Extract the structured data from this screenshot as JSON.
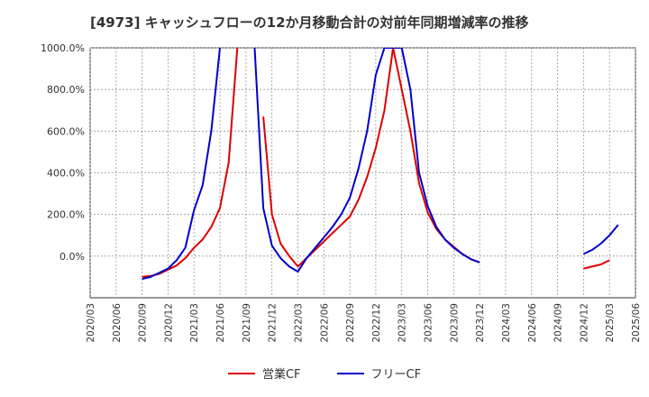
{
  "chart_data": {
    "type": "line",
    "title": "[4973]  キャッシュフローの12か月移動合計の対前年同期増減率の推移",
    "xlabel": "",
    "ylabel": "",
    "ylim": [
      -200,
      1000
    ],
    "yticks": [
      0,
      200,
      400,
      600,
      800,
      1000
    ],
    "ytick_labels": [
      "0.0%",
      "200.0%",
      "400.0%",
      "600.0%",
      "800.0%",
      "1000.0%"
    ],
    "x_ticks": [
      "2020/03",
      "2020/06",
      "2020/09",
      "2020/12",
      "2021/03",
      "2021/06",
      "2021/09",
      "2021/12",
      "2022/03",
      "2022/06",
      "2022/09",
      "2022/12",
      "2023/03",
      "2023/06",
      "2023/09",
      "2023/12",
      "2024/03",
      "2024/06",
      "2024/09",
      "2024/12",
      "2025/03",
      "2025/06"
    ],
    "grid": true,
    "legend_position": "bottom",
    "series": [
      {
        "name": "営業CF",
        "color": "#dd0000",
        "points": [
          [
            "2020/03",
            -70
          ],
          [
            "2020/06",
            -85
          ],
          [
            "2020/09",
            -100
          ],
          [
            "2020/10",
            -95
          ],
          [
            "2020/11",
            -85
          ],
          [
            "2020/12",
            -65
          ],
          [
            "2021/01",
            -45
          ],
          [
            "2021/02",
            -10
          ],
          [
            "2021/03",
            40
          ],
          [
            "2021/04",
            80
          ],
          [
            "2021/05",
            140
          ],
          [
            "2021/06",
            230
          ],
          [
            "2021/07",
            450
          ],
          [
            "2021/08",
            1000
          ],
          [
            "2021/11",
            670
          ],
          [
            "2021/12",
            200
          ],
          [
            "2022/01",
            60
          ],
          [
            "2022/02",
            0
          ],
          [
            "2022/03",
            -50
          ],
          [
            "2022/04",
            -10
          ],
          [
            "2022/05",
            30
          ],
          [
            "2022/06",
            70
          ],
          [
            "2022/07",
            110
          ],
          [
            "2022/08",
            150
          ],
          [
            "2022/09",
            190
          ],
          [
            "2022/10",
            270
          ],
          [
            "2022/11",
            380
          ],
          [
            "2022/12",
            520
          ],
          [
            "2023/01",
            700
          ],
          [
            "2023/02",
            1000
          ],
          [
            "2023/04",
            600
          ],
          [
            "2023/05",
            350
          ],
          [
            "2023/06",
            210
          ],
          [
            "2023/07",
            130
          ],
          [
            "2023/08",
            80
          ],
          [
            "2023/09",
            45
          ],
          [
            "2023/10",
            10
          ],
          [
            "2023/11",
            -15
          ],
          [
            "2023/12",
            -30
          ],
          [
            "2024/03",
            -70
          ],
          [
            "2024/06",
            -75
          ],
          [
            "2024/09",
            -75
          ],
          [
            "2024/12",
            -60
          ],
          [
            "2025/01",
            -50
          ],
          [
            "2025/02",
            -40
          ],
          [
            "2025/03",
            -20
          ]
        ]
      },
      {
        "name": "フリーCF",
        "color": "#0000cc",
        "points": [
          [
            "2020/03",
            -85
          ],
          [
            "2020/06",
            -95
          ],
          [
            "2020/09",
            -110
          ],
          [
            "2020/10",
            -100
          ],
          [
            "2020/11",
            -80
          ],
          [
            "2020/12",
            -60
          ],
          [
            "2021/01",
            -20
          ],
          [
            "2021/02",
            40
          ],
          [
            "2021/03",
            220
          ],
          [
            "2021/04",
            340
          ],
          [
            "2021/05",
            600
          ],
          [
            "2021/06",
            1000
          ],
          [
            "2021/10",
            1000
          ],
          [
            "2021/11",
            230
          ],
          [
            "2021/12",
            50
          ],
          [
            "2022/01",
            -10
          ],
          [
            "2022/02",
            -50
          ],
          [
            "2022/03",
            -75
          ],
          [
            "2022/04",
            -10
          ],
          [
            "2022/05",
            40
          ],
          [
            "2022/06",
            90
          ],
          [
            "2022/07",
            140
          ],
          [
            "2022/08",
            200
          ],
          [
            "2022/09",
            280
          ],
          [
            "2022/10",
            420
          ],
          [
            "2022/11",
            600
          ],
          [
            "2022/12",
            870
          ],
          [
            "2023/01",
            1000
          ],
          [
            "2023/03",
            1000
          ],
          [
            "2023/04",
            800
          ],
          [
            "2023/05",
            400
          ],
          [
            "2023/06",
            240
          ],
          [
            "2023/07",
            140
          ],
          [
            "2023/08",
            80
          ],
          [
            "2023/09",
            40
          ],
          [
            "2023/10",
            10
          ],
          [
            "2023/11",
            -15
          ],
          [
            "2023/12",
            -30
          ],
          [
            "2024/03",
            -65
          ],
          [
            "2024/06",
            -45
          ],
          [
            "2024/09",
            -25
          ],
          [
            "2024/12",
            10
          ],
          [
            "2025/01",
            30
          ],
          [
            "2025/02",
            60
          ],
          [
            "2025/03",
            100
          ],
          [
            "2025/04",
            150
          ]
        ]
      }
    ]
  }
}
